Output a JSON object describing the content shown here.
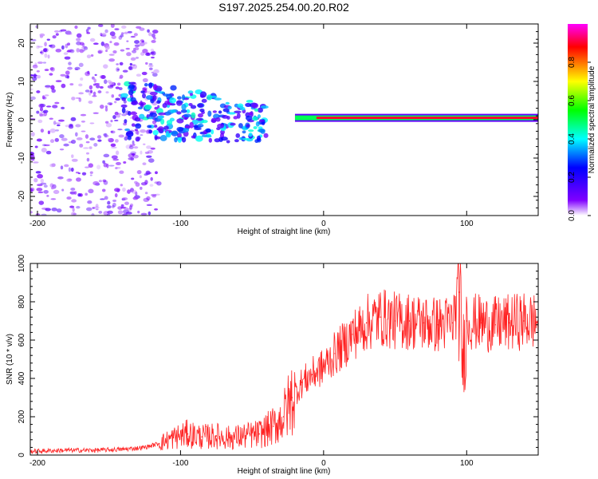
{
  "figure": {
    "title": "S197.2025.254.00.20.R02"
  },
  "chart_data": [
    {
      "type": "heatmap",
      "panel": "spectrogram",
      "title": "S197.2025.254.00.20.R02",
      "xlabel": "Height of straight line (km)",
      "ylabel": "Frequency (Hz)",
      "xlim": [
        -205,
        150
      ],
      "ylim": [
        -25,
        25
      ],
      "x_ticks": [
        -200,
        -100,
        0,
        100
      ],
      "y_ticks": [
        -20,
        -10,
        0,
        10,
        20
      ],
      "colorbar": {
        "label": "Normalized spectral amplitude",
        "range": [
          0,
          1
        ],
        "ticks": [
          "0.0",
          "0.2",
          "0.4",
          "0.6",
          "0.8"
        ],
        "colors": [
          "#ffffff",
          "#8000ff",
          "#0000ff",
          "#00ffff",
          "#00ff00",
          "#ffff00",
          "#ff0000",
          "#ff00ff"
        ]
      },
      "features": [
        {
          "name": "noise speckle",
          "x_range": [
            -205,
            -115
          ],
          "freq_range": [
            -25,
            25
          ],
          "amplitude": 0.1
        },
        {
          "name": "scattered blobs",
          "x_range": [
            -140,
            -40
          ],
          "freq_range": [
            -15,
            12
          ],
          "amplitude": 0.3
        },
        {
          "name": "carrier line",
          "x_range": [
            -20,
            150
          ],
          "freq": 0.5,
          "amplitude": 0.9
        }
      ]
    },
    {
      "type": "line",
      "panel": "snr",
      "xlabel": "Height of straight line (km)",
      "ylabel": "SNR (10 * v/v)",
      "xlim": [
        -205,
        150
      ],
      "ylim": [
        0,
        1000
      ],
      "x_ticks": [
        -200,
        -100,
        0,
        100
      ],
      "y_ticks": [
        0,
        200,
        400,
        600,
        800,
        1000
      ],
      "color": "#ff2222",
      "series": [
        {
          "name": "SNR",
          "x": [
            -205,
            -180,
            -160,
            -140,
            -125,
            -115,
            -105,
            -95,
            -85,
            -75,
            -65,
            -55,
            -45,
            -35,
            -28,
            -22,
            -15,
            -8,
            0,
            8,
            15,
            20,
            25,
            30,
            40,
            50,
            60,
            70,
            80,
            90,
            95,
            97,
            100,
            110,
            120,
            130,
            140,
            150
          ],
          "y": [
            20,
            25,
            25,
            30,
            40,
            60,
            90,
            110,
            95,
            100,
            90,
            100,
            110,
            150,
            200,
            300,
            380,
            420,
            460,
            530,
            580,
            630,
            650,
            690,
            720,
            700,
            700,
            690,
            680,
            690,
            850,
            480,
            700,
            690,
            680,
            690,
            700,
            700
          ]
        }
      ]
    }
  ]
}
